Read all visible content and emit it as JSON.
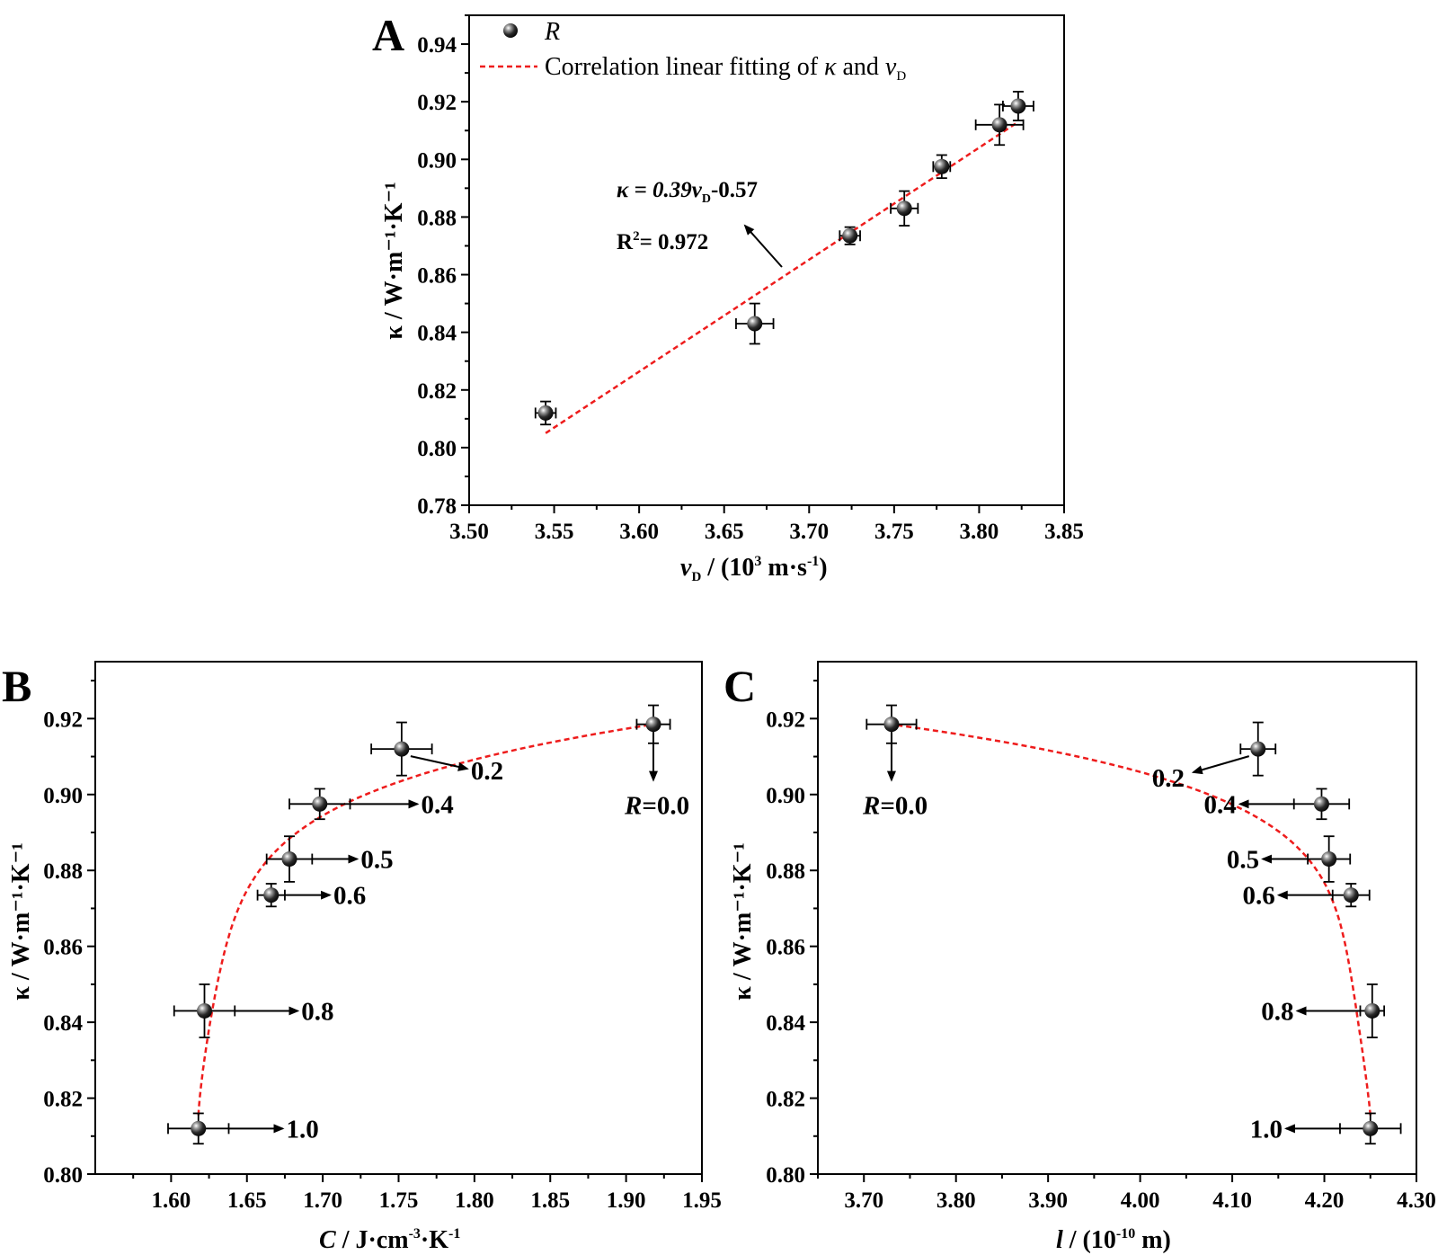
{
  "colors": {
    "fit_line": "#ee1c1c",
    "marker": "#111111",
    "axis": "#000000"
  },
  "chart_data": [
    {
      "id": "A",
      "type": "scatter",
      "panel_label": "A",
      "xlabel": {
        "main": "v",
        "sub": "D",
        "rest": " / (10",
        "sup": "3",
        "rest2": " m·s",
        "sup2": "-1",
        "close": ")"
      },
      "ylabel": "κ / W·m⁻¹·K⁻¹",
      "xlim": [
        3.5,
        3.85
      ],
      "ylim": [
        0.78,
        0.95
      ],
      "xticks": [
        "3.50",
        "3.55",
        "3.60",
        "3.65",
        "3.70",
        "3.75",
        "3.80",
        "3.85"
      ],
      "yticks": [
        "0.78",
        "0.80",
        "0.82",
        "0.84",
        "0.86",
        "0.88",
        "0.90",
        "0.92",
        "0.94"
      ],
      "series": [
        {
          "name": "R",
          "x": [
            3.545,
            3.668,
            3.724,
            3.756,
            3.778,
            3.812,
            3.823
          ],
          "y": [
            0.812,
            0.843,
            0.8735,
            0.883,
            0.8975,
            0.912,
            0.9185
          ],
          "xerr": [
            0.006,
            0.011,
            0.006,
            0.008,
            0.005,
            0.014,
            0.009
          ],
          "yerr": [
            0.004,
            0.007,
            0.003,
            0.006,
            0.004,
            0.007,
            0.005
          ]
        }
      ],
      "fit": {
        "name": "Correlation linear fitting of κ and v_D",
        "x": [
          3.545,
          3.823
        ],
        "y": [
          0.805,
          0.913
        ]
      },
      "legend": {
        "series_label": "R",
        "fit_label_prefix": "Correlation linear fitting of ",
        "fit_kappa": "κ",
        "fit_mid": " and ",
        "fit_v": "v",
        "fit_sub": "D",
        "position": "top-left"
      },
      "annotation": {
        "eq_prefix": "κ = 0.39",
        "eq_v": "v",
        "eq_sub": "D",
        "eq_suffix": "-0.57",
        "r2_label": "R",
        "r2_sup": "2",
        "r2_value": "= 0.972"
      }
    },
    {
      "id": "B",
      "type": "scatter",
      "panel_label": "B",
      "xlabel": {
        "main": "C",
        "rest": " / J·cm",
        "sup": "-3",
        "rest2": "·K",
        "sup2": "-1"
      },
      "ylabel": "κ / W·m⁻¹·K⁻¹",
      "xlim": [
        1.55,
        1.95
      ],
      "ylim": [
        0.8,
        0.935
      ],
      "xticks": [
        "1.60",
        "1.65",
        "1.70",
        "1.75",
        "1.80",
        "1.85",
        "1.90",
        "1.95"
      ],
      "yticks": [
        "0.80",
        "0.82",
        "0.84",
        "0.86",
        "0.88",
        "0.90",
        "0.92"
      ],
      "series": [
        {
          "name": "R",
          "x": [
            1.918,
            1.752,
            1.698,
            1.678,
            1.666,
            1.622,
            1.618
          ],
          "y": [
            0.9185,
            0.912,
            0.8975,
            0.883,
            0.8735,
            0.843,
            0.812
          ],
          "xerr": [
            0.011,
            0.02,
            0.02,
            0.015,
            0.009,
            0.02,
            0.02
          ],
          "yerr": [
            0.005,
            0.007,
            0.004,
            0.006,
            0.003,
            0.007,
            0.004
          ],
          "labels": [
            "R=0.0",
            "0.2",
            "0.4",
            "0.5",
            "0.6",
            "0.8",
            "1.0"
          ]
        }
      ],
      "fit_curve": "dashed"
    },
    {
      "id": "C",
      "type": "scatter",
      "panel_label": "C",
      "xlabel": {
        "main": "l",
        "rest": " / (10",
        "sup": "-10",
        "rest2": " m)"
      },
      "ylabel": "κ / W·m⁻¹·K⁻¹",
      "xlim": [
        3.65,
        4.3
      ],
      "ylim": [
        0.8,
        0.935
      ],
      "xticks": [
        "3.70",
        "3.80",
        "3.90",
        "4.00",
        "4.10",
        "4.20",
        "4.30"
      ],
      "yticks": [
        "0.80",
        "0.82",
        "0.84",
        "0.86",
        "0.88",
        "0.90",
        "0.92"
      ],
      "series": [
        {
          "name": "R",
          "x": [
            3.73,
            4.128,
            4.197,
            4.205,
            4.229,
            4.252,
            4.25
          ],
          "y": [
            0.9185,
            0.912,
            0.8975,
            0.883,
            0.8735,
            0.843,
            0.812
          ],
          "xerr": [
            0.027,
            0.019,
            0.03,
            0.023,
            0.02,
            0.013,
            0.033
          ],
          "yerr": [
            0.005,
            0.007,
            0.004,
            0.006,
            0.003,
            0.007,
            0.004
          ],
          "labels": [
            "R=0.0",
            "0.2",
            "0.4",
            "0.5",
            "0.6",
            "0.8",
            "1.0"
          ]
        }
      ],
      "fit_curve": "dashed"
    }
  ]
}
